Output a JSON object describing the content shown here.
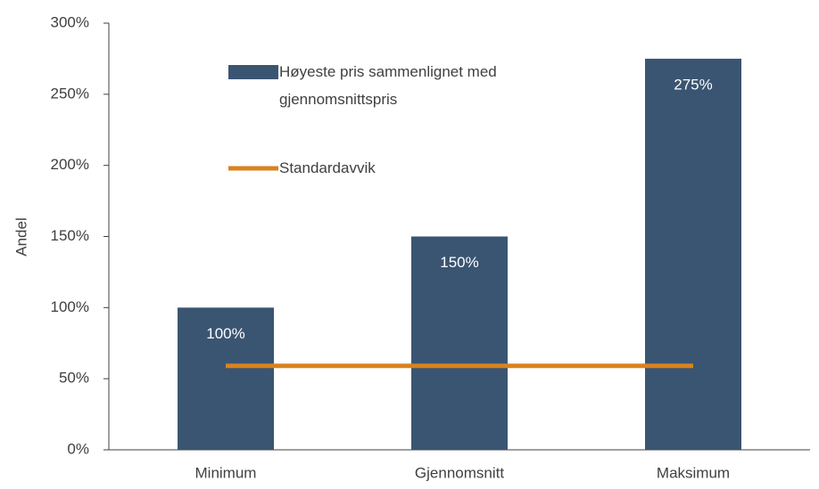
{
  "chart_data": {
    "type": "bar",
    "categories": [
      "Minimum",
      "Gjennomsnitt",
      "Maksimum"
    ],
    "series": [
      {
        "name": "Høyeste pris sammenlignet med gjennomsnittspris",
        "type": "bar",
        "color": "#3a5572",
        "values": [
          100,
          150,
          275
        ],
        "value_labels": [
          "100%",
          "150%",
          "275%"
        ]
      },
      {
        "name": "Standardavvik",
        "type": "line",
        "color": "#d9821e",
        "values": [
          59,
          59,
          59
        ]
      }
    ],
    "ylabel": "Andel",
    "ylim": [
      0,
      300
    ],
    "yticks": [
      {
        "value": 0,
        "label": "0%"
      },
      {
        "value": 50,
        "label": "50%"
      },
      {
        "value": 100,
        "label": "100%"
      },
      {
        "value": 150,
        "label": "150%"
      },
      {
        "value": 200,
        "label": "200%"
      },
      {
        "value": 250,
        "label": "250%"
      },
      {
        "value": 300,
        "label": "300%"
      }
    ],
    "grid": false
  }
}
